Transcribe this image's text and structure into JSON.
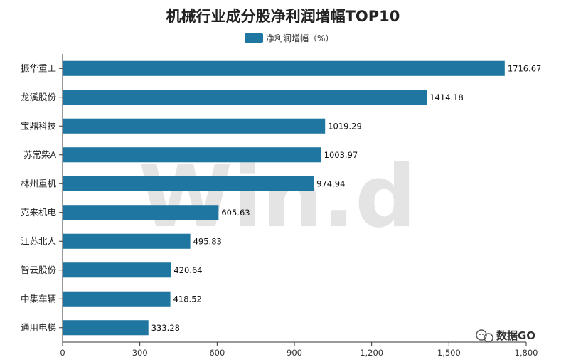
{
  "chart_data": {
    "type": "bar",
    "orientation": "horizontal",
    "title": "机械行业成分股净利润增幅TOP10",
    "legend": {
      "entries": [
        "净利润增幅（%）"
      ],
      "position": "top"
    },
    "categories": [
      "振华重工",
      "龙溪股份",
      "宝鼎科技",
      "苏常柴A",
      "林州重机",
      "克来机电",
      "江苏北人",
      "智云股份",
      "中集车辆",
      "通用电梯"
    ],
    "series": [
      {
        "name": "净利润增幅（%）",
        "values": [
          1716.67,
          1414.18,
          1019.29,
          1003.97,
          974.94,
          605.63,
          495.83,
          420.64,
          418.52,
          333.28
        ]
      }
    ],
    "value_labels": [
      "1716.67",
      "1414.18",
      "1019.29",
      "1003.97",
      "974.94",
      "605.63",
      "495.83",
      "420.64",
      "418.52",
      "333.28"
    ],
    "xlim": [
      0,
      1800
    ],
    "xticks": [
      0,
      300,
      600,
      900,
      1200,
      1500,
      1800
    ],
    "xtick_labels": [
      "0",
      "300",
      "600",
      "900",
      "1,200",
      "1,500",
      "1,800"
    ],
    "xlabel": "",
    "ylabel": "",
    "grid": false,
    "colors": {
      "bar": "#1f76a0",
      "axis": "#333333"
    }
  },
  "watermark": "Win.d",
  "brand": "数据GO"
}
